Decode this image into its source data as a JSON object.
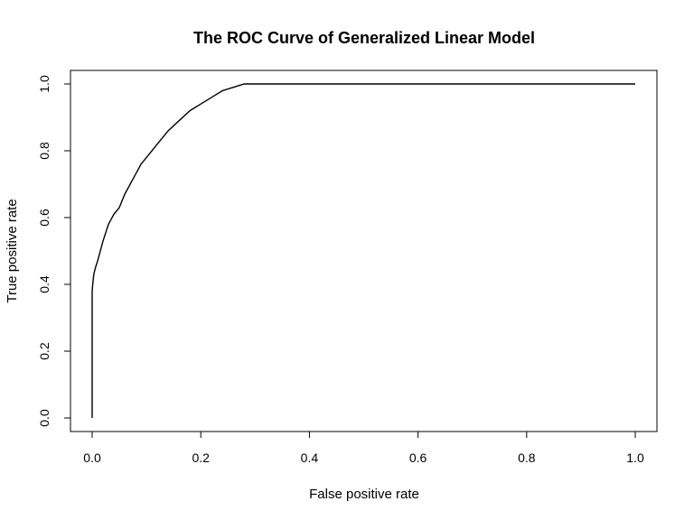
{
  "chart_data": {
    "type": "line",
    "title": "The ROC Curve of Generalized Linear Model",
    "xlabel": "False positive rate",
    "ylabel": "True positive rate",
    "xlim": [
      0,
      1
    ],
    "ylim": [
      0,
      1
    ],
    "x_ticks": [
      "0.0",
      "0.2",
      "0.4",
      "0.6",
      "0.8",
      "1.0"
    ],
    "y_ticks": [
      "0.0",
      "0.2",
      "0.4",
      "0.6",
      "0.8",
      "1.0"
    ],
    "grid": false,
    "legend": "none",
    "line_color": "#000000",
    "series": [
      {
        "x": [
          0.0,
          0.0,
          0.0,
          0.001,
          0.003,
          0.006,
          0.01,
          0.015,
          0.02,
          0.03,
          0.04,
          0.05,
          0.06,
          0.07,
          0.08,
          0.09,
          0.1,
          0.12,
          0.14,
          0.16,
          0.18,
          0.2,
          0.22,
          0.24,
          0.26,
          0.27,
          0.28,
          0.4,
          0.6,
          0.8,
          1.0
        ],
        "y": [
          0.0,
          0.2,
          0.38,
          0.4,
          0.43,
          0.45,
          0.47,
          0.5,
          0.53,
          0.58,
          0.61,
          0.63,
          0.67,
          0.7,
          0.73,
          0.76,
          0.78,
          0.82,
          0.86,
          0.89,
          0.92,
          0.94,
          0.96,
          0.98,
          0.99,
          0.995,
          1.0,
          1.0,
          1.0,
          1.0,
          1.0
        ]
      }
    ]
  }
}
